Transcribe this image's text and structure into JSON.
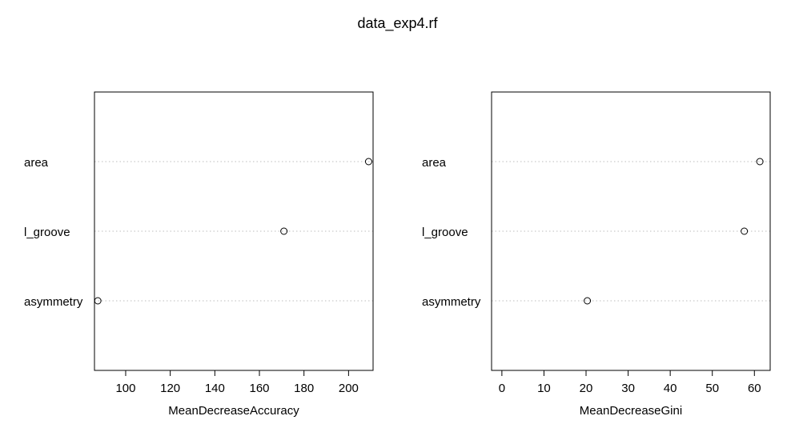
{
  "title": "data_exp4.rf",
  "chart_data": [
    {
      "type": "scatter",
      "subtype": "dotchart",
      "title": "",
      "xlabel": "MeanDecreaseAccuracy",
      "ylabel": "",
      "categories": [
        "area",
        "l_groove",
        "asymmetry"
      ],
      "values": [
        209.0,
        171.0,
        87.5
      ],
      "xlim": [
        86.0,
        211.0
      ],
      "xticks": [
        100,
        120,
        140,
        160,
        180,
        200
      ],
      "grid": "dotted horizontal lines"
    },
    {
      "type": "scatter",
      "subtype": "dotchart",
      "title": "",
      "xlabel": "MeanDecreaseGini",
      "ylabel": "",
      "categories": [
        "area",
        "l_groove",
        "asymmetry"
      ],
      "values": [
        61.3,
        57.6,
        20.3
      ],
      "xlim": [
        -2.45,
        63.75
      ],
      "xticks": [
        0,
        10,
        20,
        30,
        40,
        50,
        60
      ],
      "grid": "dotted horizontal lines"
    }
  ]
}
